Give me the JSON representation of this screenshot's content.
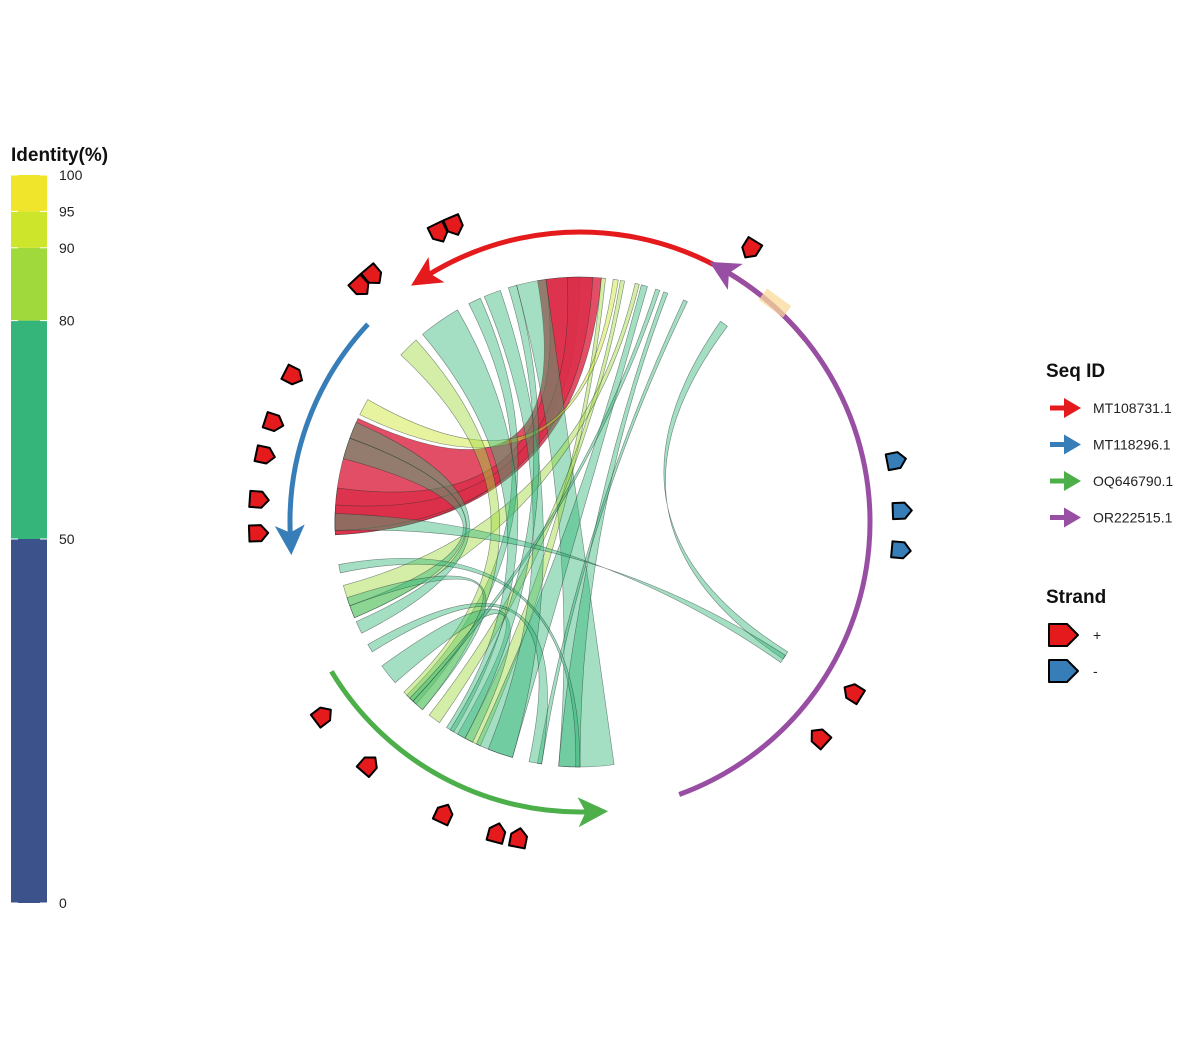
{
  "identity_legend": {
    "title": "Identity(%)",
    "breaks": [
      0,
      50,
      80,
      90,
      95,
      100
    ],
    "colors": [
      "#3c528a",
      "#35b57a",
      "#9fd93c",
      "#cde52a",
      "#f0e52a"
    ]
  },
  "seq_legend": {
    "title": "Seq ID",
    "items": [
      {
        "label": "MT108731.1",
        "color": "#e41a1c"
      },
      {
        "label": "MT118296.1",
        "color": "#377eb8"
      },
      {
        "label": "OQ646790.1",
        "color": "#4daf4a"
      },
      {
        "label": "OR222515.1",
        "color": "#984ea3"
      }
    ]
  },
  "strand_legend": {
    "title": "Strand",
    "items": [
      {
        "label": "+",
        "color": "#e41a1c"
      },
      {
        "label": "-",
        "color": "#377eb8"
      }
    ]
  },
  "sequences": [
    {
      "id": "MT108731.1",
      "color": "#e41a1c",
      "start_deg": 51,
      "end_deg": -32
    },
    {
      "id": "MT118296.1",
      "color": "#377eb8",
      "start_deg": -47,
      "end_deg": -93
    },
    {
      "id": "OQ646790.1",
      "color": "#4daf4a",
      "start_deg": -121,
      "end_deg": -182
    },
    {
      "id": "OR222515.1",
      "color": "#984ea3",
      "start_deg": 160,
      "end_deg": 30
    }
  ],
  "genes": [
    {
      "deg": -43,
      "strand": "+"
    },
    {
      "deg": -40,
      "strand": "+"
    },
    {
      "deg": -26,
      "strand": "+"
    },
    {
      "deg": -23,
      "strand": "+"
    },
    {
      "deg": 32,
      "strand": "+"
    },
    {
      "deg": -63,
      "strand": "+"
    },
    {
      "deg": -72,
      "strand": "+"
    },
    {
      "deg": -78,
      "strand": "+"
    },
    {
      "deg": -86,
      "strand": "+"
    },
    {
      "deg": -92,
      "strand": "+"
    },
    {
      "deg": -127,
      "strand": "+"
    },
    {
      "deg": -139,
      "strand": "+"
    },
    {
      "deg": -155,
      "strand": "+"
    },
    {
      "deg": -165,
      "strand": "+"
    },
    {
      "deg": -169,
      "strand": "+"
    },
    {
      "deg": 79,
      "strand": "-"
    },
    {
      "deg": 88,
      "strand": "-"
    },
    {
      "deg": 95,
      "strand": "-"
    },
    {
      "deg": 122,
      "strand": "+"
    },
    {
      "deg": 132,
      "strand": "+"
    }
  ],
  "links": [
    {
      "a1": 5,
      "a2": -10,
      "b1": -65,
      "b2": -93,
      "identity": 99
    },
    {
      "a1": 0,
      "a2": -8,
      "b1": -82,
      "b2": -93,
      "identity": 99
    },
    {
      "a1": 3,
      "a2": -3,
      "b1": -86,
      "b2": -92,
      "identity": 99
    },
    {
      "a1": -8,
      "a2": -15,
      "b1": -175,
      "b2": -188,
      "identity": 75
    },
    {
      "a1": 6,
      "a2": 5,
      "b1": -152,
      "b2": -156,
      "identity": 85
    },
    {
      "a1": 9,
      "a2": 7.8,
      "b1": -60,
      "b2": -64,
      "identity": 95
    },
    {
      "a1": 10.5,
      "a2": 9.5,
      "b1": -142,
      "b2": -145,
      "identity": 88
    },
    {
      "a1": 14,
      "a2": 13,
      "b1": -105,
      "b2": -113,
      "identity": 85
    },
    {
      "a1": 16,
      "a2": 14.5,
      "b1": -155,
      "b2": -164,
      "identity": 70
    },
    {
      "a1": -19,
      "a2": -23,
      "b1": -158,
      "b2": -164,
      "identity": 75
    },
    {
      "a1": -24,
      "a2": -27,
      "b1": -135,
      "b2": -138,
      "identity": 80
    },
    {
      "a1": -30,
      "a2": -40,
      "b1": -147,
      "b2": -149,
      "identity": 70
    },
    {
      "a1": -42,
      "a2": -47,
      "b1": -134,
      "b2": -140,
      "identity": 85
    },
    {
      "a1": 21,
      "a2": 20,
      "b1": -175,
      "b2": -180,
      "identity": 60
    },
    {
      "a1": 26,
      "a2": 25,
      "b1": -170,
      "b2": -171,
      "identity": 60
    },
    {
      "a1": 37,
      "a2": 35,
      "b1": 122,
      "b2": 124,
      "identity": 70
    },
    {
      "a1": -66,
      "a2": -70,
      "b1": -114,
      "b2": -117,
      "identity": 70
    },
    {
      "a1": -70,
      "a2": -75,
      "b1": -110,
      "b2": -113,
      "identity": 70
    },
    {
      "a1": -88,
      "a2": -92,
      "b1": 123,
      "b2": 125,
      "identity": 65
    },
    {
      "a1": -100,
      "a2": -102,
      "b1": -179,
      "b2": -180,
      "identity": 60
    },
    {
      "a1": -120,
      "a2": -122,
      "b1": -168,
      "b2": -171,
      "identity": 75
    },
    {
      "a1": -126,
      "a2": -131,
      "b1": -150,
      "b2": -154,
      "identity": 80
    },
    {
      "a1": -108,
      "a2": -110,
      "b1": -137,
      "b2": -140,
      "identity": 80
    },
    {
      "a1": 19,
      "a2": 18,
      "b1": -136,
      "b2": -137,
      "identity": 65
    },
    {
      "a1": -15,
      "a2": -17,
      "b1": -148,
      "b2": -152,
      "identity": 78
    }
  ]
}
